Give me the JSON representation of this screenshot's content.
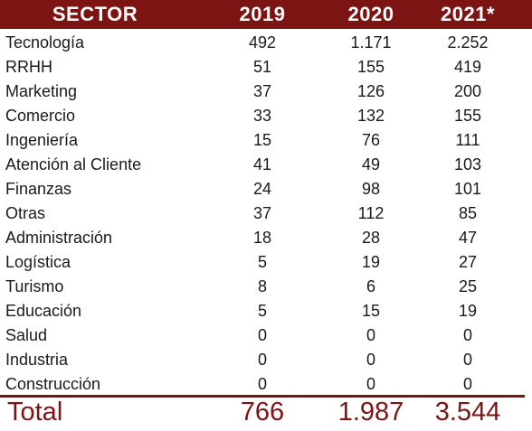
{
  "header": {
    "sector": "SECTOR",
    "y2019": "2019",
    "y2020": "2020",
    "y2021": "2021*"
  },
  "rows": [
    {
      "sector": "Tecnología",
      "y2019": "492",
      "y2020": "1.171",
      "y2021": "2.252"
    },
    {
      "sector": "RRHH",
      "y2019": "51",
      "y2020": "155",
      "y2021": "419"
    },
    {
      "sector": "Marketing",
      "y2019": "37",
      "y2020": "126",
      "y2021": "200"
    },
    {
      "sector": "Comercio",
      "y2019": "33",
      "y2020": "132",
      "y2021": "155"
    },
    {
      "sector": "Ingeniería",
      "y2019": "15",
      "y2020": "76",
      "y2021": "111"
    },
    {
      "sector": "Atención al Cliente",
      "y2019": "41",
      "y2020": "49",
      "y2021": "103"
    },
    {
      "sector": "Finanzas",
      "y2019": "24",
      "y2020": "98",
      "y2021": "101"
    },
    {
      "sector": "Otras",
      "y2019": "37",
      "y2020": "112",
      "y2021": "85"
    },
    {
      "sector": "Administración",
      "y2019": "18",
      "y2020": "28",
      "y2021": "47"
    },
    {
      "sector": "Logística",
      "y2019": "5",
      "y2020": "19",
      "y2021": "27"
    },
    {
      "sector": "Turismo",
      "y2019": "8",
      "y2020": "6",
      "y2021": "25"
    },
    {
      "sector": "Educación",
      "y2019": "5",
      "y2020": "15",
      "y2021": "19"
    },
    {
      "sector": "Salud",
      "y2019": "0",
      "y2020": "0",
      "y2021": "0"
    },
    {
      "sector": "Industria",
      "y2019": "0",
      "y2020": "0",
      "y2021": "0"
    },
    {
      "sector": "Construcción",
      "y2019": "0",
      "y2020": "0",
      "y2021": "0"
    }
  ],
  "total": {
    "label": "Total",
    "y2019": "766",
    "y2020": "1.987",
    "y2021": "3.544"
  },
  "colors": {
    "header_background": "#7c1414",
    "header_text": "#ffffff",
    "total_text": "#7c1414",
    "body_text": "#1a1a1a"
  }
}
